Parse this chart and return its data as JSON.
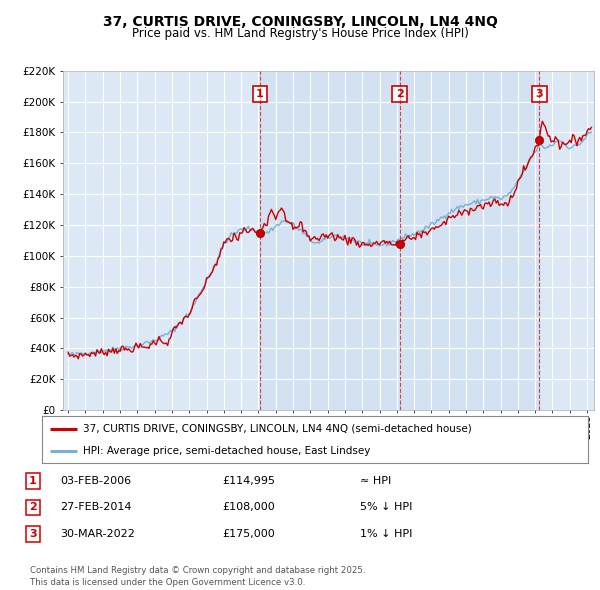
{
  "title": "37, CURTIS DRIVE, CONINGSBY, LINCOLN, LN4 4NQ",
  "subtitle": "Price paid vs. HM Land Registry's House Price Index (HPI)",
  "background_color": "#ffffff",
  "plot_bg_color": "#dce8f5",
  "grid_color": "#ffffff",
  "ylim": [
    0,
    220000
  ],
  "yticks": [
    0,
    20000,
    40000,
    60000,
    80000,
    100000,
    120000,
    140000,
    160000,
    180000,
    200000,
    220000
  ],
  "sale_prices": [
    114995,
    108000,
    175000
  ],
  "sale_labels": [
    "1",
    "2",
    "3"
  ],
  "sale_year_floats": [
    2006.087,
    2014.162,
    2022.247
  ],
  "legend_line1": "37, CURTIS DRIVE, CONINGSBY, LINCOLN, LN4 4NQ (semi-detached house)",
  "legend_line2": "HPI: Average price, semi-detached house, East Lindsey",
  "table_entries": [
    {
      "label": "1",
      "date": "03-FEB-2006",
      "price": "£114,995",
      "hpi": "≈ HPI"
    },
    {
      "label": "2",
      "date": "27-FEB-2014",
      "price": "£108,000",
      "hpi": "5% ↓ HPI"
    },
    {
      "label": "3",
      "date": "30-MAR-2022",
      "price": "£175,000",
      "hpi": "1% ↓ HPI"
    }
  ],
  "footnote": "Contains HM Land Registry data © Crown copyright and database right 2025.\nThis data is licensed under the Open Government Licence v3.0.",
  "line_color_red": "#cc0000",
  "line_color_blue": "#7ab0d4",
  "vline_color": "#cc0000",
  "marker_color_red": "#cc0000",
  "sale_box_color": "#cc0000",
  "highlight_color": "#ccddf0"
}
